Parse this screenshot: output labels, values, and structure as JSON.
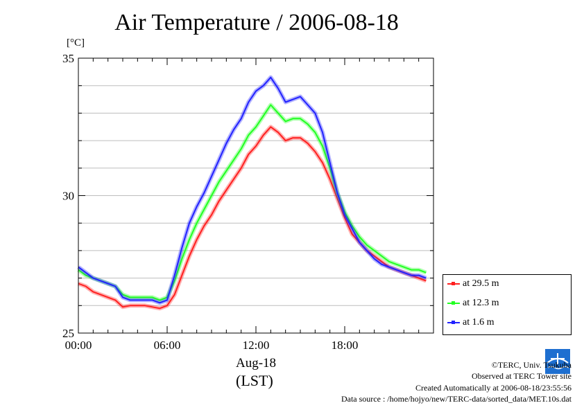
{
  "colors": {
    "t29": "#ff2020",
    "t12": "#22ff22",
    "t1": "#2222ff",
    "grid": "#bdbdbd",
    "logo": "#1e6fd0"
  },
  "chart_data": {
    "type": "line",
    "title": "Air Temperature / 2006-08-18",
    "ylabel": "[°C]",
    "xlabel": "Aug-18",
    "xlabel2": "(LST)",
    "x_ticks": [
      "00:00",
      "06:00",
      "12:00",
      "18:00"
    ],
    "y_ticks": [
      "25",
      "30",
      "35"
    ],
    "xlim": [
      0,
      24
    ],
    "ylim": [
      25,
      35
    ],
    "grid": true,
    "legend_position": "right",
    "x": [
      0,
      0.5,
      1,
      1.5,
      2,
      2.5,
      3,
      3.5,
      4,
      4.5,
      5,
      5.5,
      6,
      6.5,
      7,
      7.5,
      8,
      8.5,
      9,
      9.5,
      10,
      10.5,
      11,
      11.5,
      12,
      12.5,
      13,
      13.5,
      14,
      14.5,
      15,
      15.5,
      16,
      16.5,
      17,
      17.5,
      18,
      18.5,
      19,
      19.5,
      20,
      20.5,
      21,
      21.5,
      22,
      22.5,
      23,
      23.5
    ],
    "series": [
      {
        "name": "at 29.5 m",
        "color": "t29",
        "values": [
          26.8,
          26.7,
          26.5,
          26.4,
          26.3,
          26.2,
          25.95,
          26.0,
          26.0,
          26.0,
          25.95,
          25.9,
          26.0,
          26.4,
          27.1,
          27.8,
          28.4,
          28.9,
          29.3,
          29.8,
          30.2,
          30.6,
          31.0,
          31.5,
          31.8,
          32.2,
          32.5,
          32.3,
          32.0,
          32.1,
          32.1,
          31.9,
          31.6,
          31.2,
          30.6,
          29.9,
          29.2,
          28.6,
          28.3,
          28.0,
          27.8,
          27.6,
          27.4,
          27.3,
          27.2,
          27.1,
          27.0,
          26.9
        ]
      },
      {
        "name": "at 12.3 m",
        "color": "t12",
        "values": [
          27.3,
          27.1,
          27.0,
          26.9,
          26.8,
          26.7,
          26.4,
          26.3,
          26.3,
          26.3,
          26.3,
          26.2,
          26.3,
          26.9,
          27.7,
          28.4,
          29.0,
          29.5,
          30.0,
          30.5,
          30.9,
          31.3,
          31.7,
          32.2,
          32.5,
          32.9,
          33.3,
          33.0,
          32.7,
          32.8,
          32.8,
          32.6,
          32.3,
          31.8,
          31.0,
          30.1,
          29.4,
          28.9,
          28.5,
          28.2,
          28.0,
          27.8,
          27.6,
          27.5,
          27.4,
          27.3,
          27.3,
          27.2
        ]
      },
      {
        "name": "at 1.6 m",
        "color": "t1",
        "values": [
          27.4,
          27.2,
          27.0,
          26.9,
          26.8,
          26.7,
          26.3,
          26.2,
          26.2,
          26.2,
          26.2,
          26.1,
          26.2,
          27.1,
          28.1,
          29.0,
          29.6,
          30.1,
          30.7,
          31.3,
          31.9,
          32.4,
          32.8,
          33.4,
          33.8,
          34.0,
          34.3,
          33.9,
          33.4,
          33.5,
          33.6,
          33.3,
          33.0,
          32.3,
          31.2,
          30.1,
          29.3,
          28.8,
          28.3,
          28.0,
          27.7,
          27.5,
          27.4,
          27.3,
          27.2,
          27.1,
          27.1,
          27.0
        ]
      }
    ]
  },
  "footer": {
    "copyright": "©TERC, Univ. Tsukuba",
    "site": "Observed at TERC Tower site",
    "created": "Created Automatically at 2006-08-18/23:55:56",
    "source": "Data source : /home/hojyo/new/TERC-data/sorted_data/MET.10s.dat",
    "logo_text": "TERC"
  }
}
